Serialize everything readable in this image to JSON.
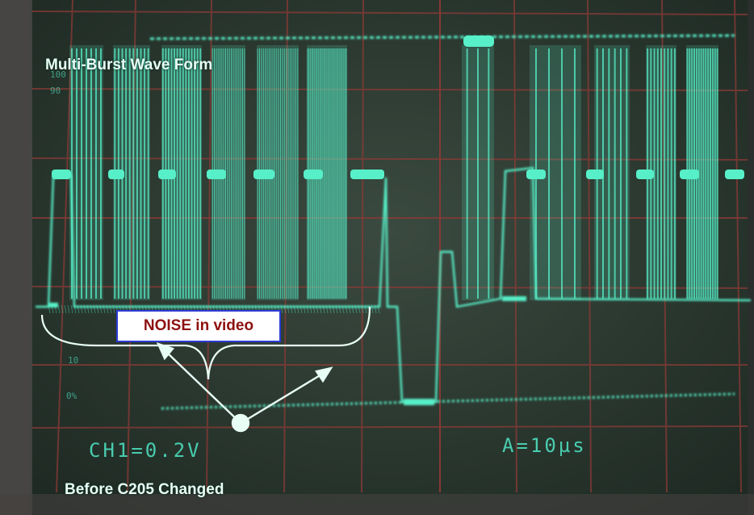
{
  "annotations": {
    "title": "Multi-Burst Wave Form",
    "noise_label": "NOISE in video",
    "caption": "Before C205 Changed"
  },
  "scope_readouts": {
    "channel": "CH1=0.2V",
    "timebase": "A=10µs"
  },
  "graticule_labels": {
    "top_100": "100",
    "top_90": "90",
    "low_10": "10",
    "low_0": "0%"
  },
  "colors": {
    "trace": "#57f0c8",
    "grid": "#8a3a36",
    "screen": "#2c3a30",
    "annotation_line": "#e8fff6",
    "noise_box_text": "#8e1010",
    "noise_box_border": "#2b3bd6"
  }
}
